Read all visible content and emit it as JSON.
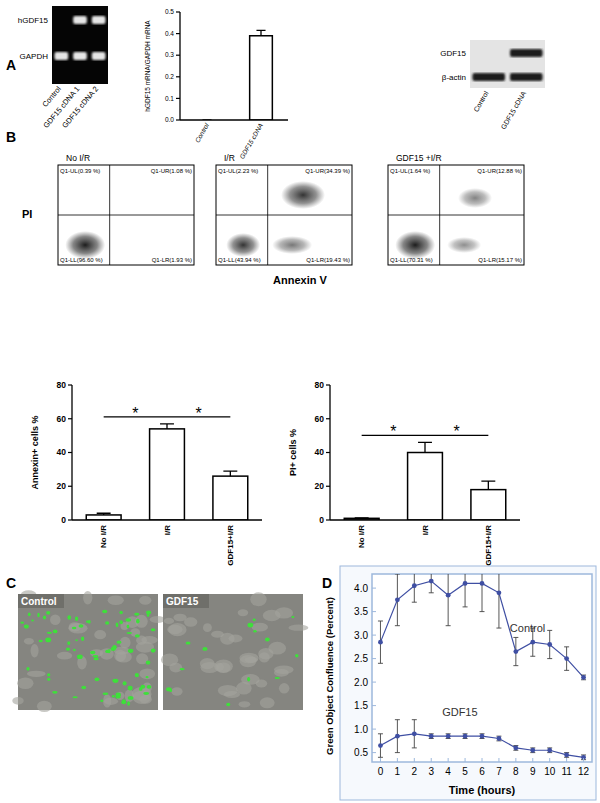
{
  "panel_labels": [
    "A",
    "B",
    "C",
    "D"
  ],
  "gel": {
    "rows": [
      {
        "label": "hGDF15",
        "present": [
          false,
          true,
          true
        ]
      },
      {
        "label": "GAPDH",
        "present": [
          true,
          true,
          true
        ]
      }
    ],
    "lanes": [
      "Control",
      "GDF15 cDNA 1",
      "GDF15 cDNA 2"
    ]
  },
  "western": {
    "rows": [
      {
        "label": "GDF15",
        "present": [
          false,
          true
        ]
      },
      {
        "label": "β-actin",
        "present": [
          true,
          true
        ]
      }
    ],
    "lanes": [
      "Control",
      "GDF15 cDNA"
    ]
  },
  "flow": {
    "y_label": "PI",
    "x_label": "Annexin V",
    "plots": [
      {
        "title": "No I/R",
        "quadrants": [
          "Q1-UL(0.39 %)",
          "Q1-UR(1.08 %)",
          "Q1-LL(96.60 %)",
          "Q1-LR(1.93 %)"
        ]
      },
      {
        "title": "I/R",
        "quadrants": [
          "Q1-UL(2.23 %)",
          "Q1-UR(34.39 %)",
          "Q1-LL(43.94 %)",
          "Q1-LR(19.43 %)"
        ]
      },
      {
        "title": "GDF15 +I/R",
        "quadrants": [
          "Q1-UL(1.64 %)",
          "Q1-UR(12.88 %)",
          "Q1-LL(70.31 %)",
          "Q1-LR(15.17 %)"
        ]
      }
    ]
  },
  "micrographs": {
    "labels": [
      "Control",
      "GDF15"
    ]
  },
  "chart_data": [
    {
      "type": "bar",
      "y_label": "hGDF15 mRNA/GAPDH mRNA",
      "categories": [
        "Control",
        "GDF15 cDNA"
      ],
      "values": [
        0,
        0.39
      ],
      "errors": [
        0,
        0.025
      ],
      "color": "#ffffff",
      "ylim": [
        0,
        0.5
      ],
      "yticks": [
        {
          "value": 0,
          "label": "0.0"
        },
        0.1,
        0.2,
        0.3,
        0.4,
        0.5
      ]
    },
    {
      "type": "bar",
      "y_label": "Annexin+ cells %",
      "categories": [
        "No I/R",
        "I/R",
        "GDF15+I/R"
      ],
      "values": [
        3,
        54,
        26
      ],
      "errors": [
        1,
        3,
        3
      ],
      "color": "#ffffff",
      "ylim": [
        0,
        80
      ],
      "yticks": [
        0,
        20,
        40,
        60,
        80
      ],
      "annotations": [
        {
          "text": "*",
          "between": [
            "No I/R",
            "I/R"
          ]
        },
        {
          "text": "*",
          "between": [
            "I/R",
            "GDF15+I/R"
          ]
        }
      ]
    },
    {
      "type": "bar",
      "y_label": "PI+ cells %",
      "categories": [
        "No I/R",
        "I/R",
        "GDF15+I/R"
      ],
      "values": [
        1,
        40,
        18
      ],
      "errors": [
        0.3,
        6,
        5
      ],
      "color": "#ffffff",
      "ylim": [
        0,
        80
      ],
      "yticks": [
        0,
        20,
        40,
        60,
        80
      ],
      "annotations": [
        {
          "text": "*",
          "between": [
            "No I/R",
            "I/R"
          ]
        },
        {
          "text": "*",
          "between": [
            "I/R",
            "GDF15+I/R"
          ]
        }
      ]
    },
    {
      "type": "line",
      "x_label": "Time (hours)",
      "y_label": "Green Object Confluence (Percent)",
      "x": [
        0,
        1,
        2,
        3,
        4,
        5,
        6,
        7,
        8,
        9,
        10,
        11,
        12
      ],
      "xlim": [
        -0.5,
        12.5
      ],
      "xticks": [
        0,
        1,
        2,
        3,
        4,
        5,
        6,
        7,
        8,
        9,
        10,
        11,
        12
      ],
      "ylim": [
        0.3,
        4.3
      ],
      "yticks": [
        0.5,
        {
          "value": 1,
          "label": "1.0"
        },
        1.5,
        {
          "value": 2,
          "label": "2.0"
        },
        2.5,
        {
          "value": 3,
          "label": "3.0"
        },
        3.5,
        {
          "value": 4,
          "label": "4.0"
        }
      ],
      "grid": false,
      "series": [
        {
          "name": "Control",
          "color": "#3f4fa3",
          "marker": "circle",
          "values": [
            2.85,
            3.75,
            4.05,
            4.15,
            3.85,
            4.1,
            4.1,
            3.9,
            2.65,
            2.85,
            2.8,
            2.5,
            2.1
          ],
          "errors": [
            0.45,
            0.55,
            0.35,
            0.25,
            0.65,
            0.5,
            0.6,
            0.75,
            0.3,
            0.3,
            0.3,
            0.25,
            0.05
          ]
        },
        {
          "name": "GDF15",
          "color": "#3f4fa3",
          "marker": "circle",
          "values": [
            0.65,
            0.85,
            0.9,
            0.85,
            0.85,
            0.85,
            0.85,
            0.8,
            0.6,
            0.55,
            0.55,
            0.45,
            0.4
          ],
          "errors": [
            0.25,
            0.35,
            0.3,
            0.05,
            0.05,
            0.05,
            0.05,
            0.05,
            0.05,
            0.05,
            0.05,
            0.05,
            0.05
          ]
        }
      ]
    }
  ]
}
